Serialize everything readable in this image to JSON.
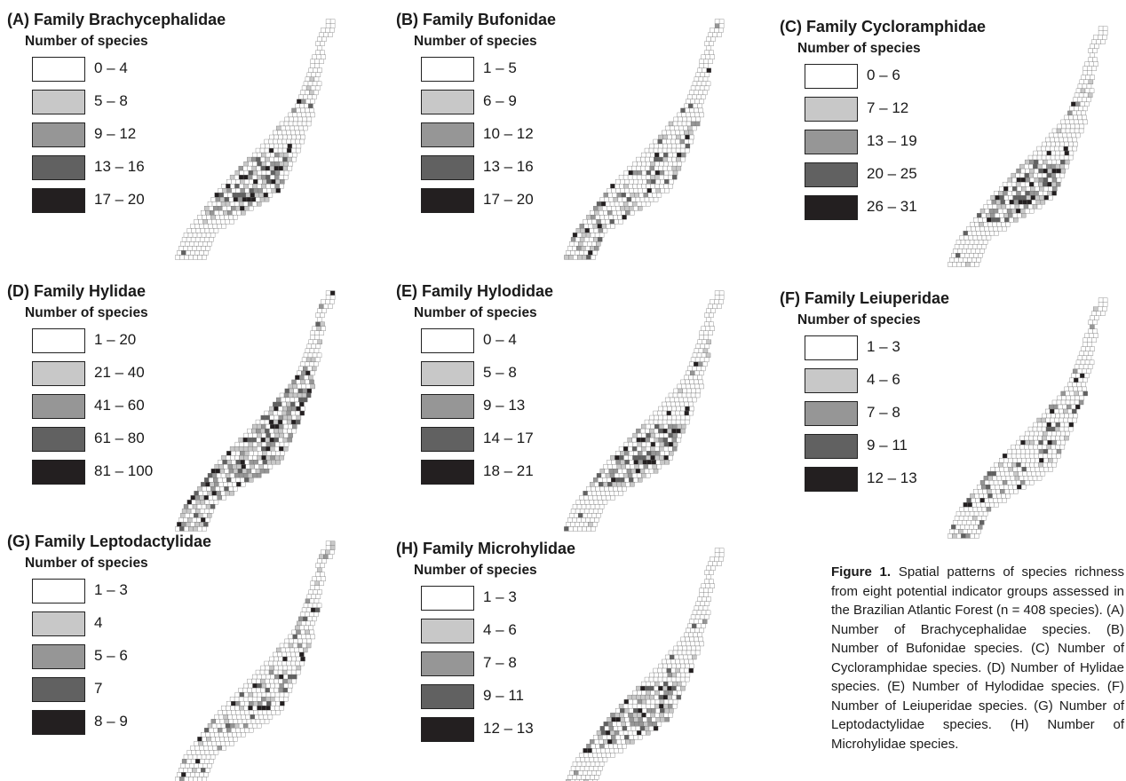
{
  "panels": [
    {
      "title": "(A) Family Brachycephalidae",
      "subtitle": "Number of species",
      "legend": [
        "0 – 4",
        "5 – 8",
        "9 – 12",
        "13 – 16",
        "17 – 20"
      ],
      "hotspot": "coast-mid"
    },
    {
      "title": "(B) Family Bufonidae",
      "subtitle": "Number of species",
      "legend": [
        "1 – 5",
        "6 – 9",
        "10 – 12",
        "13 – 16",
        "17 – 20"
      ],
      "hotspot": "south"
    },
    {
      "title": "(C) Family Cycloramphidae",
      "subtitle": "Number of species",
      "legend": [
        "0 – 6",
        "7 – 12",
        "13 – 19",
        "20 – 25",
        "26 – 31"
      ],
      "hotspot": "coast-mid"
    },
    {
      "title": "(D) Family Hylidae",
      "subtitle": "Number of species",
      "legend": [
        "1 – 20",
        "21 – 40",
        "41 – 60",
        "61 – 80",
        "81 – 100"
      ],
      "hotspot": "broad"
    },
    {
      "title": "(E) Family Hylodidae",
      "subtitle": "Number of species",
      "legend": [
        "0 – 4",
        "5 – 8",
        "9 – 13",
        "14 – 17",
        "18 – 21"
      ],
      "hotspot": "coast-mid"
    },
    {
      "title": "(F) Family Leiuperidae",
      "subtitle": "Number of species",
      "legend": [
        "1 – 3",
        "4 – 6",
        "7 – 8",
        "9 – 11",
        "12 – 13"
      ],
      "hotspot": "scattered"
    },
    {
      "title": "(G) Family Leptodactylidae",
      "subtitle": "Number of species",
      "legend": [
        "1 – 3",
        "4",
        "5 – 6",
        "7",
        "8 – 9"
      ],
      "hotspot": "scattered"
    },
    {
      "title": "(H) Family Microhylidae",
      "subtitle": "Number of species",
      "legend": [
        "1 – 3",
        "4 – 6",
        "7 – 8",
        "9 – 11",
        "12 – 13"
      ],
      "hotspot": "coast-mid"
    }
  ],
  "legend_colors": [
    "#ffffff",
    "#c8c8c8",
    "#969696",
    "#616161",
    "#231f20"
  ],
  "caption": {
    "label": "Figure 1.",
    "text": "Spatial patterns of species richness from eight potential indicator groups assessed in the Brazilian Atlantic Forest (n = 408 species). (A) Number of Brachycephalidae species. (B) Number of Bufonidae species. (C) Number of Cycloramphidae species. (D) Number of Hylidae species. (E) Number of Hylodidae species. (F) Number of Leiuperidae species. (G) Number of Leptodactylidae species. (H) Number of Microhylidae species."
  }
}
